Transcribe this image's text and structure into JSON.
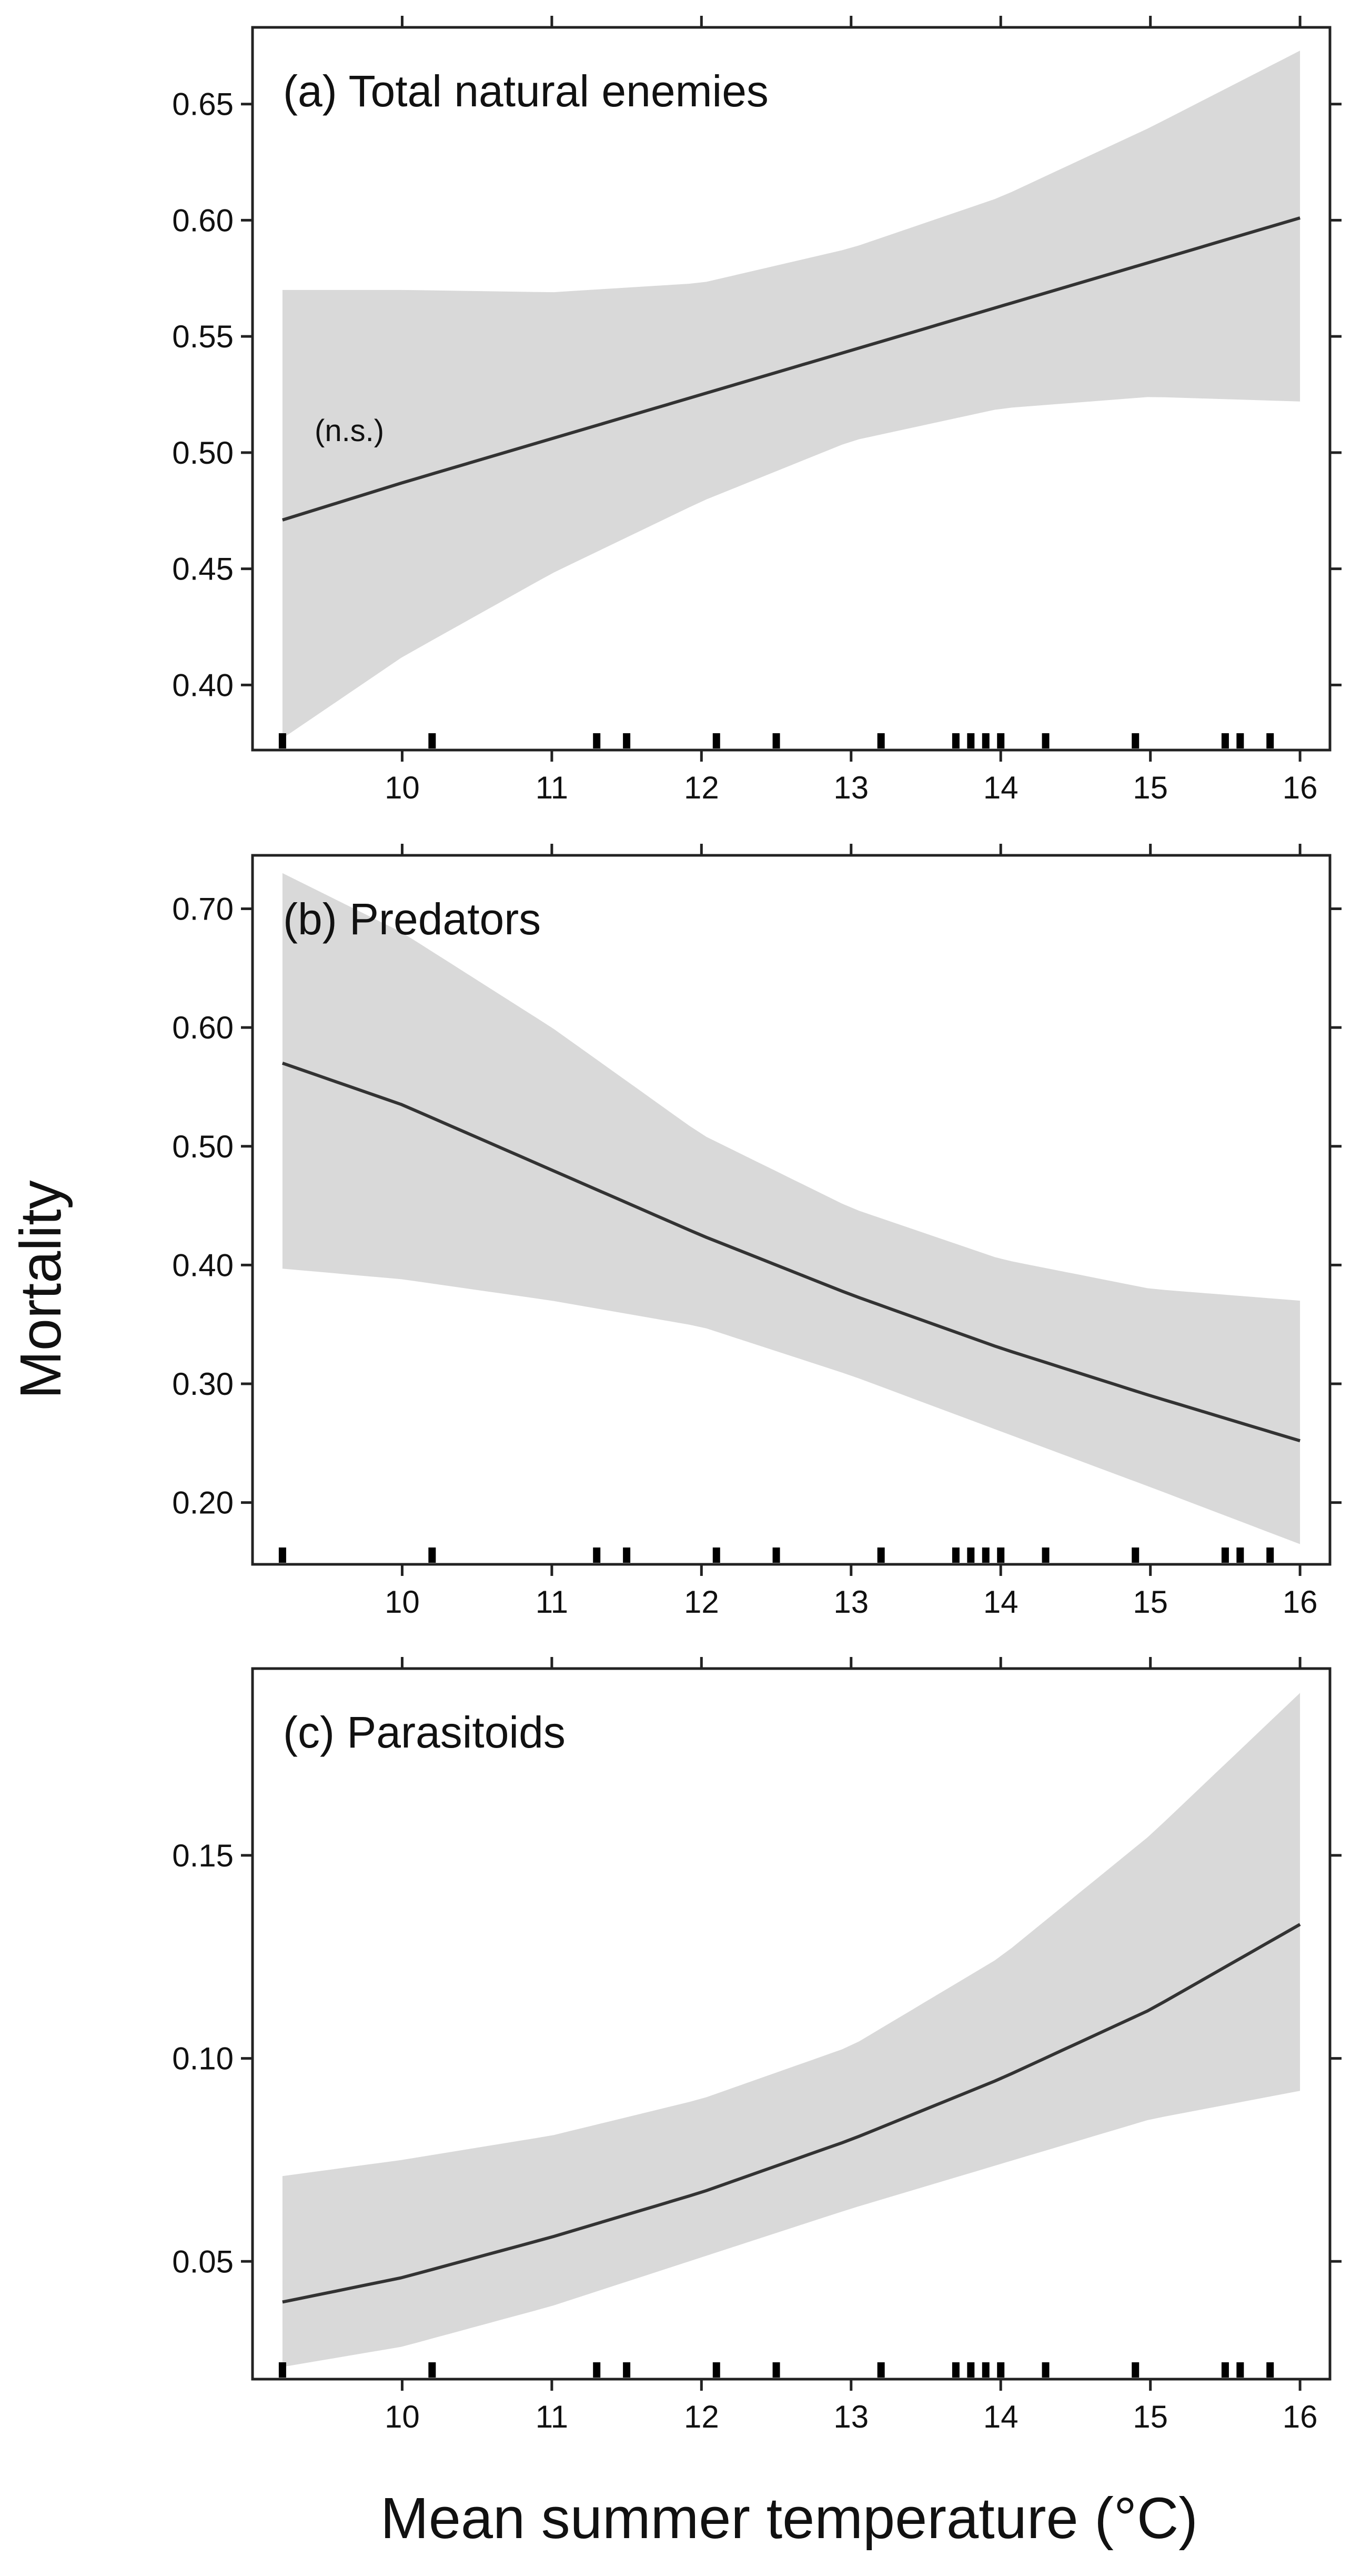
{
  "figure": {
    "ylabel": "Mortality",
    "xlabel": "Mean summer temperature (°C)",
    "rug_x": [
      9.2,
      10.2,
      11.3,
      11.5,
      12.1,
      12.5,
      13.2,
      13.7,
      13.8,
      13.9,
      14.0,
      14.3,
      14.9,
      15.5,
      15.6,
      15.8
    ]
  },
  "colors": {
    "line": "#333333",
    "band": "#d9d9d9",
    "frame": "#222222"
  },
  "chart_data": [
    {
      "type": "line",
      "title": "(a) Total natural enemies",
      "annotation": "(n.s.)",
      "xlabel": "Mean summer temperature (°C)",
      "ylabel": "Mortality",
      "xlim": [
        9.0,
        16.2
      ],
      "ylim": [
        0.372,
        0.683
      ],
      "xticks": [
        10,
        11,
        12,
        13,
        14,
        15,
        16
      ],
      "xtick_labels": [
        "10",
        "11",
        "12",
        "13",
        "14",
        "15",
        "16"
      ],
      "yticks": [
        0.4,
        0.45,
        0.5,
        0.55,
        0.6,
        0.65
      ],
      "ytick_labels": [
        "0.40",
        "0.45",
        "0.50",
        "0.55",
        "0.60",
        "0.65"
      ],
      "series": [
        {
          "name": "fit",
          "x": [
            9.2,
            10,
            11,
            12,
            13,
            14,
            15,
            16
          ],
          "y": [
            0.471,
            0.487,
            0.506,
            0.525,
            0.544,
            0.563,
            0.582,
            0.601
          ],
          "ci_lower": [
            0.377,
            0.412,
            0.448,
            0.479,
            0.505,
            0.519,
            0.524,
            0.522
          ],
          "ci_upper": [
            0.57,
            0.57,
            0.569,
            0.573,
            0.588,
            0.61,
            0.64,
            0.673
          ]
        }
      ]
    },
    {
      "type": "line",
      "title": "(b) Predators",
      "xlabel": "Mean summer temperature (°C)",
      "ylabel": "Mortality",
      "xlim": [
        9.0,
        16.2
      ],
      "ylim": [
        0.148,
        0.745
      ],
      "xticks": [
        10,
        11,
        12,
        13,
        14,
        15,
        16
      ],
      "xtick_labels": [
        "10",
        "11",
        "12",
        "13",
        "14",
        "15",
        "16"
      ],
      "yticks": [
        0.2,
        0.3,
        0.4,
        0.5,
        0.6,
        0.7
      ],
      "ytick_labels": [
        "0.20",
        "0.30",
        "0.40",
        "0.50",
        "0.60",
        "0.70"
      ],
      "series": [
        {
          "name": "fit",
          "x": [
            9.2,
            10,
            11,
            12,
            13,
            14,
            15,
            16
          ],
          "y": [
            0.57,
            0.535,
            0.48,
            0.425,
            0.375,
            0.33,
            0.29,
            0.252
          ],
          "ci_lower": [
            0.397,
            0.388,
            0.37,
            0.348,
            0.307,
            0.26,
            0.213,
            0.165
          ],
          "ci_upper": [
            0.73,
            0.68,
            0.6,
            0.51,
            0.448,
            0.405,
            0.38,
            0.37
          ]
        }
      ]
    },
    {
      "type": "line",
      "title": "(c) Parasitoids",
      "xlabel": "Mean summer temperature (°C)",
      "ylabel": "Mortality",
      "xlim": [
        9.0,
        16.2
      ],
      "ylim": [
        0.021,
        0.196
      ],
      "xticks": [
        10,
        11,
        12,
        13,
        14,
        15,
        16
      ],
      "xtick_labels": [
        "10",
        "11",
        "12",
        "13",
        "14",
        "15",
        "16"
      ],
      "yticks": [
        0.05,
        0.1,
        0.15
      ],
      "ytick_labels": [
        "0.05",
        "0.10",
        "0.15"
      ],
      "series": [
        {
          "name": "fit",
          "x": [
            9.2,
            10,
            11,
            12,
            13,
            14,
            15,
            16
          ],
          "y": [
            0.04,
            0.046,
            0.056,
            0.067,
            0.08,
            0.095,
            0.112,
            0.133
          ],
          "ci_lower": [
            0.024,
            0.029,
            0.039,
            0.051,
            0.063,
            0.074,
            0.085,
            0.092
          ],
          "ci_upper": [
            0.071,
            0.075,
            0.081,
            0.09,
            0.103,
            0.125,
            0.155,
            0.19
          ]
        }
      ]
    }
  ]
}
